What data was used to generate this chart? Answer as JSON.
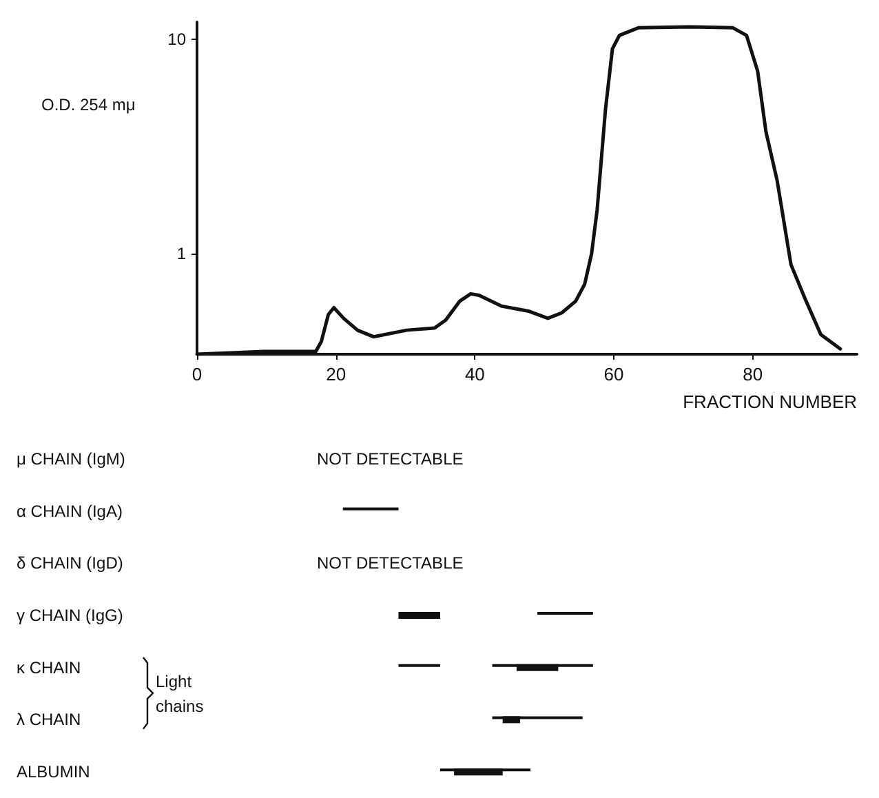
{
  "chart_data": [
    {
      "type": "line",
      "xlabel": "FRACTION NUMBER",
      "ylabel": "O.D. 254 mμ",
      "log": "y",
      "xlim": [
        0,
        95
      ],
      "ylim": [
        0.34,
        12
      ],
      "xticks": [
        0,
        20,
        40,
        60,
        80
      ],
      "yticks": [
        1,
        10
      ],
      "grid": false,
      "marker": "none",
      "line_style": "solid",
      "series": [
        {
          "color": "#111111",
          "x": [
            0,
            9.6,
            17.1,
            17.9,
            18.9,
            19.7,
            21.1,
            23.1,
            25.4,
            30.2,
            34.2,
            35.8,
            37.8,
            39.4,
            40.6,
            43.8,
            47.7,
            50.5,
            52.5,
            54.5,
            55.8,
            56.8,
            57.6,
            58.8,
            59.8,
            60.8,
            63.6,
            70.8,
            77.1,
            79.1,
            80.7,
            81.9,
            83.5,
            85.5,
            87.5,
            89.8,
            92.6
          ],
          "values": [
            0.34,
            0.35,
            0.35,
            0.39,
            0.52,
            0.56,
            0.5,
            0.44,
            0.41,
            0.44,
            0.45,
            0.49,
            0.6,
            0.65,
            0.64,
            0.57,
            0.54,
            0.5,
            0.53,
            0.6,
            0.72,
            1.0,
            1.6,
            4.7,
            9.0,
            10.4,
            11.3,
            11.4,
            11.3,
            10.4,
            7.1,
            3.7,
            2.2,
            0.89,
            0.62,
            0.42,
            0.36
          ]
        }
      ]
    },
    {
      "type": "bar",
      "orientation": "horizontal",
      "categories": [
        "μ CHAIN (IgM)",
        "α CHAIN (IgA)",
        "δ CHAIN (IgD)",
        "γ CHAIN (IgG)",
        "κ CHAIN",
        "λ CHAIN",
        "ALBUMIN"
      ],
      "xlim": [
        0,
        80
      ],
      "xticks": [
        0,
        20,
        40,
        60,
        80
      ],
      "tick_labels": "y",
      "annotations": [
        "NOT DETECTABLE",
        "NOT DETECTABLE",
        "Light chains"
      ],
      "series": [
        {
          "color": "#111111",
          "base": [
            null,
            21,
            null,
            null,
            29,
            42.5,
            35
          ],
          "values": [
            null,
            8,
            null,
            null,
            6,
            13,
            13
          ]
        },
        {
          "color": "#111111",
          "base": [
            null,
            null,
            null,
            49,
            42.5,
            null,
            null
          ],
          "values": [
            null,
            null,
            null,
            8,
            14.5,
            null,
            null
          ]
        },
        {
          "color": "#111111",
          "base": [
            null,
            null,
            null,
            29,
            46,
            44,
            37
          ],
          "values": [
            null,
            null,
            null,
            6,
            6,
            2.5,
            7
          ]
        }
      ]
    }
  ]
}
